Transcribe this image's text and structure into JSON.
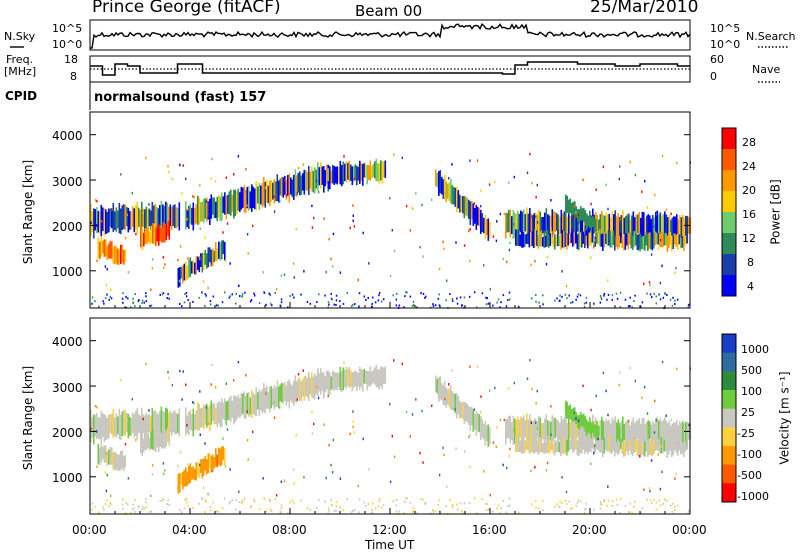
{
  "header": {
    "radar": "Prince George (fitACF)",
    "beam": "Beam 00",
    "date": "25/Mar/2010"
  },
  "strip_noise": {
    "left_label": "N.Sky",
    "right_label": "N.Search",
    "left_ticks": [
      "10^5",
      "10^0"
    ],
    "right_ticks": [
      "10^5",
      "10^0"
    ]
  },
  "strip_freq": {
    "left_label_line1": "Freq.",
    "left_label_line2": "[MHz]",
    "right_label": "Nave",
    "left_ticks": [
      "18",
      "8"
    ],
    "right_ticks": [
      "60",
      "0"
    ]
  },
  "cpid": {
    "label": "CPID",
    "value": "normalsound (fast) 157"
  },
  "chart_data": [
    {
      "type": "heatmap",
      "title": "Power",
      "ylabel": "Slant Range [km]",
      "xlabel": "Time UT",
      "y_ticks": [
        "4000",
        "3000",
        "2000",
        "1000"
      ],
      "colorbar": {
        "label": "Power [dB]",
        "ticks": [
          "28",
          "24",
          "20",
          "16",
          "12",
          "8",
          "4"
        ],
        "colors": [
          "#ff0000",
          "#ff5a00",
          "#ff9900",
          "#ffcc00",
          "#6ecc6e",
          "#2e8b57",
          "#1a3da8",
          "#0000ff"
        ]
      },
      "ylim": [
        180,
        4500
      ],
      "xlim": [
        "00:00",
        "24:00"
      ]
    },
    {
      "type": "heatmap",
      "title": "Velocity",
      "ylabel": "Slant Range [km]",
      "xlabel": "Time UT",
      "y_ticks": [
        "4000",
        "3000",
        "2000",
        "1000"
      ],
      "colorbar": {
        "label": "Velocity [m s⁻¹]",
        "ticks": [
          "1000",
          "500",
          "100",
          "25",
          "-25",
          "-100",
          "-500",
          "-1000"
        ],
        "colors": [
          "#1a3dc8",
          "#2e6b9e",
          "#2e8b3e",
          "#6ecc3e",
          "#c8c8c0",
          "#ffd040",
          "#ff9900",
          "#ff5a00",
          "#ff0000"
        ]
      },
      "ylim": [
        180,
        4500
      ],
      "xlim": [
        "00:00",
        "24:00"
      ]
    }
  ],
  "x_axis": {
    "ticks": [
      "00:00",
      "04:00",
      "08:00",
      "12:00",
      "16:00",
      "20:00",
      "00:00"
    ],
    "label": "Time UT"
  }
}
